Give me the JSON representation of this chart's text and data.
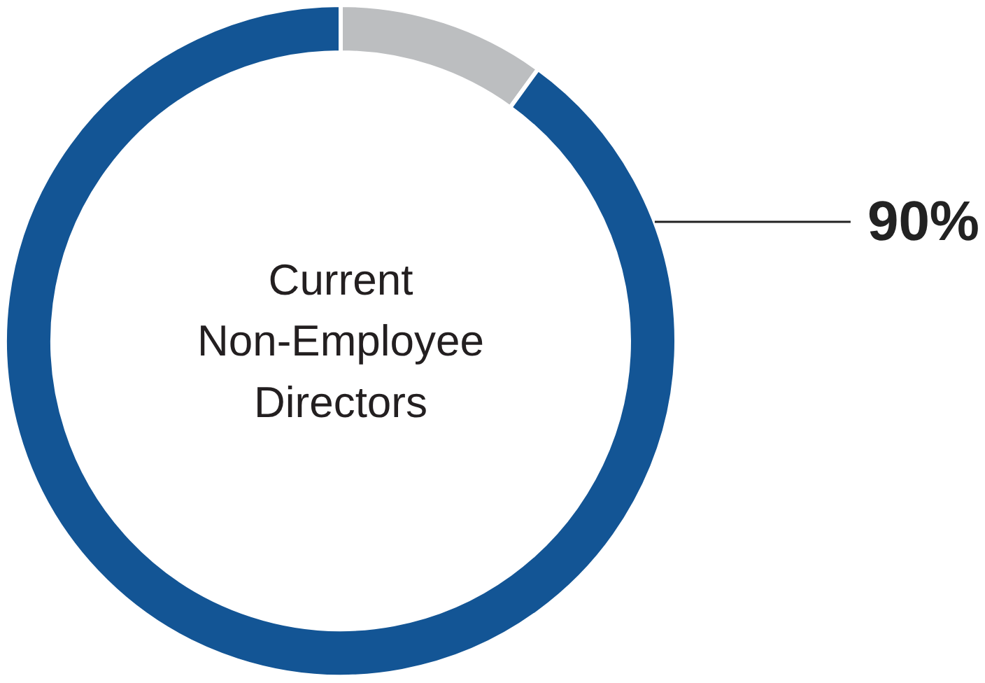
{
  "chart_data": {
    "type": "donut",
    "categories": [
      null,
      null
    ],
    "values": [
      10,
      90
    ],
    "colors": [
      "#bcbec0",
      "#135595"
    ],
    "value_labels": [
      null,
      "90%"
    ],
    "annotations": [
      "Current\nNon-Employee\nDirectors"
    ]
  }
}
